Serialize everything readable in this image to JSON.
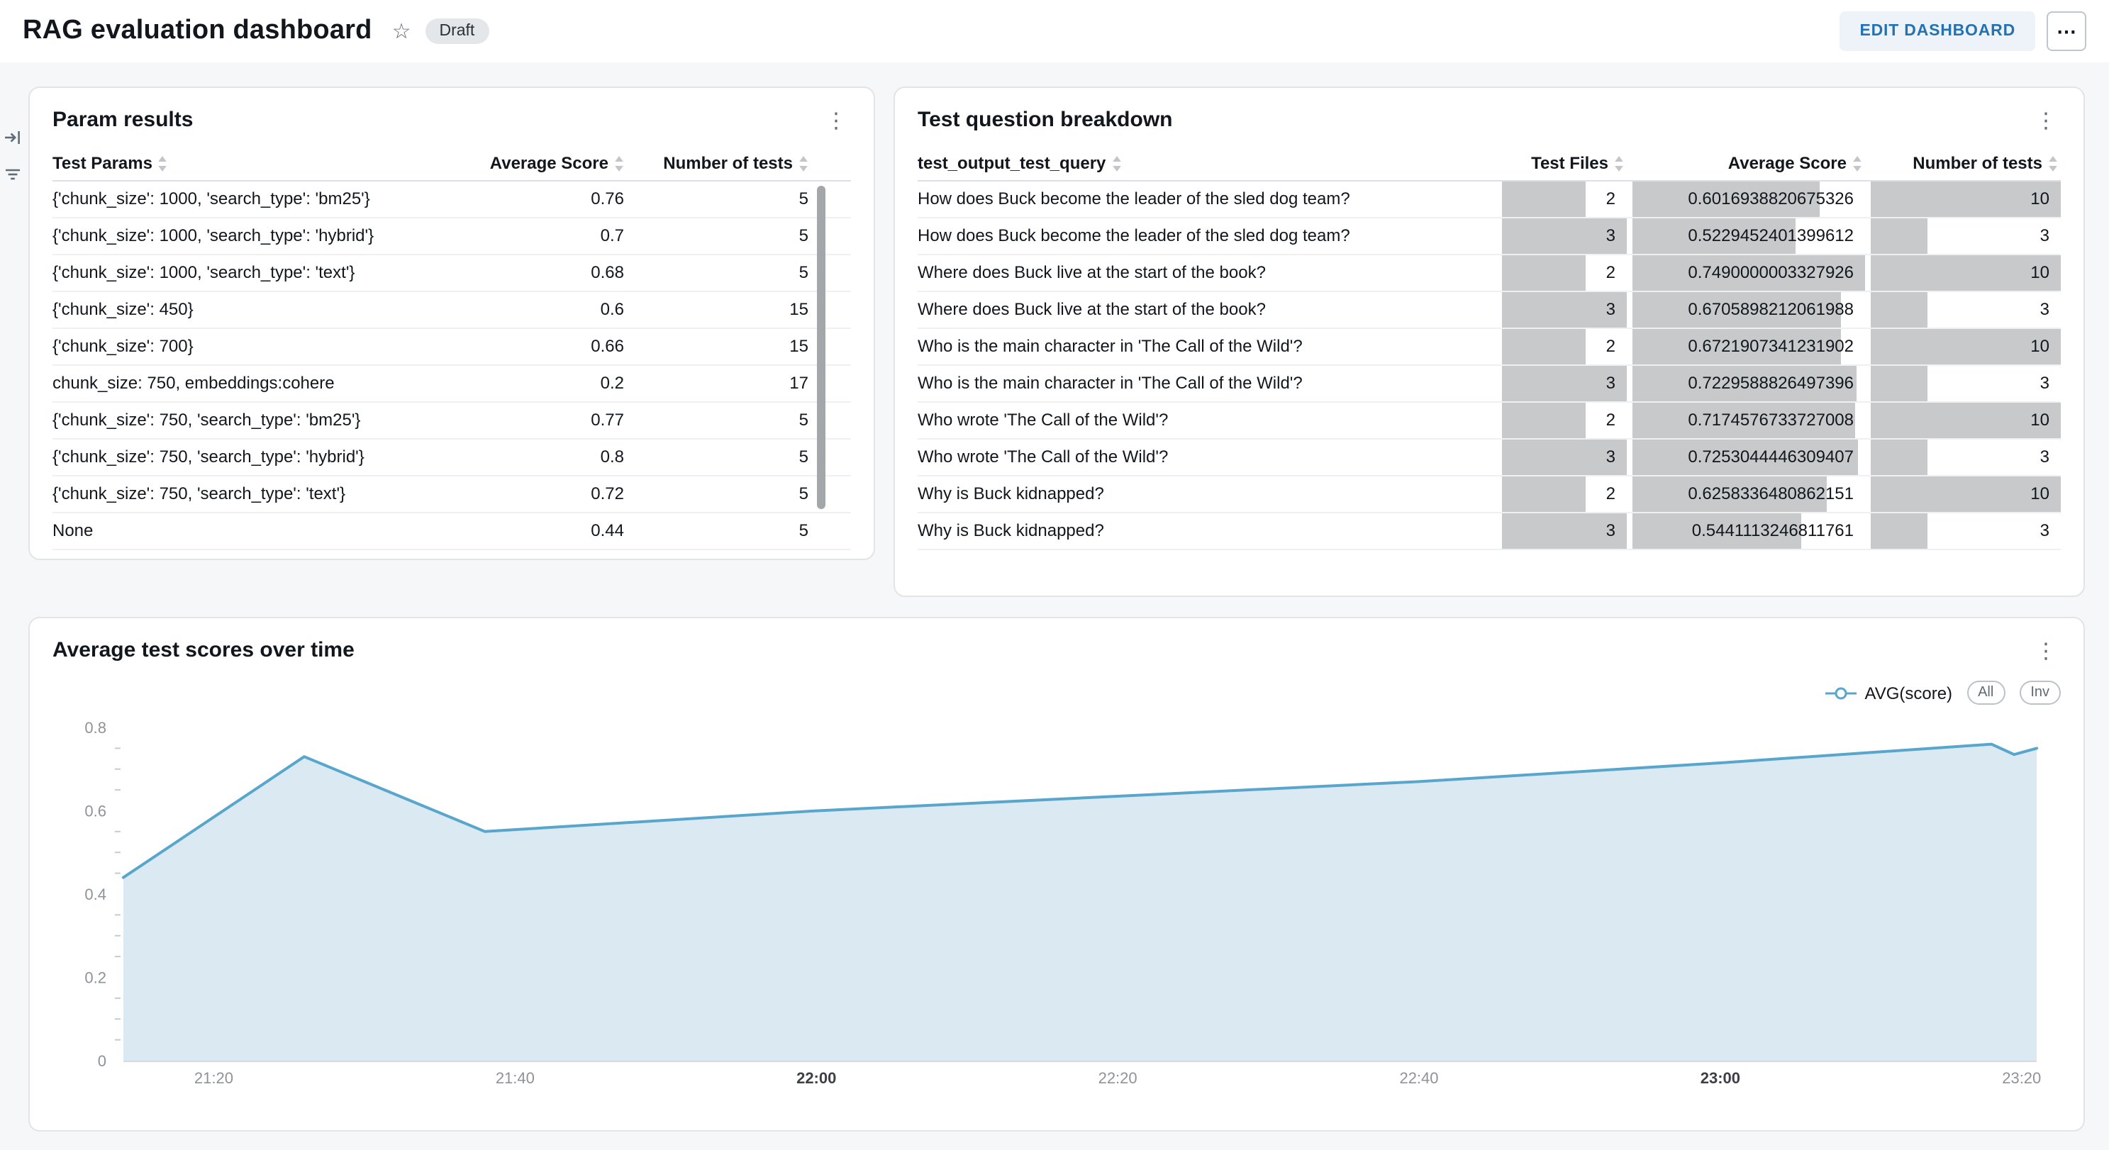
{
  "header": {
    "title": "RAG evaluation dashboard",
    "status_badge": "Draft",
    "edit_button": "EDIT DASHBOARD",
    "more_icon": "⋯",
    "star_icon": "☆",
    "accent_color": "#2272B4"
  },
  "panels": {
    "param_results": {
      "title": "Param results",
      "columns": [
        "Test Params",
        "Average Score",
        "Number of tests"
      ],
      "rows": [
        {
          "params": "{'chunk_size': 1000, 'search_type': 'bm25'}",
          "avg_score": "0.76",
          "num_tests": "5"
        },
        {
          "params": "{'chunk_size': 1000, 'search_type': 'hybrid'}",
          "avg_score": "0.7",
          "num_tests": "5"
        },
        {
          "params": "{'chunk_size': 1000, 'search_type': 'text'}",
          "avg_score": "0.68",
          "num_tests": "5"
        },
        {
          "params": "{'chunk_size': 450}",
          "avg_score": "0.6",
          "num_tests": "15"
        },
        {
          "params": "{'chunk_size': 700}",
          "avg_score": "0.66",
          "num_tests": "15"
        },
        {
          "params": "chunk_size: 750, embeddings:cohere",
          "avg_score": "0.2",
          "num_tests": "17"
        },
        {
          "params": "{'chunk_size': 750, 'search_type': 'bm25'}",
          "avg_score": "0.77",
          "num_tests": "5"
        },
        {
          "params": "{'chunk_size': 750, 'search_type': 'hybrid'}",
          "avg_score": "0.8",
          "num_tests": "5"
        },
        {
          "params": "{'chunk_size': 750, 'search_type': 'text'}",
          "avg_score": "0.72",
          "num_tests": "5"
        },
        {
          "params": "None",
          "avg_score": "0.44",
          "num_tests": "5"
        }
      ]
    },
    "question_breakdown": {
      "title": "Test question breakdown",
      "columns": [
        "test_output_test_query",
        "Test Files",
        "Average Score",
        "Number of tests"
      ],
      "bar_color": "#C7C9CB",
      "rows": [
        {
          "query": "How does Buck become the leader of the sled dog team?",
          "test_files": "2",
          "avg_score": "0.6016938820675326",
          "num_tests": "10"
        },
        {
          "query": "How does Buck become the leader of the sled dog team?",
          "test_files": "3",
          "avg_score": "0.5229452401399612",
          "num_tests": "3"
        },
        {
          "query": "Where does Buck live at the start of the book?",
          "test_files": "2",
          "avg_score": "0.7490000003327926",
          "num_tests": "10"
        },
        {
          "query": "Where does Buck live at the start of the book?",
          "test_files": "3",
          "avg_score": "0.6705898212061988",
          "num_tests": "3"
        },
        {
          "query": "Who is the main character in 'The Call of the Wild'?",
          "test_files": "2",
          "avg_score": "0.6721907341231902",
          "num_tests": "10"
        },
        {
          "query": "Who is the main character in 'The Call of the Wild'?",
          "test_files": "3",
          "avg_score": "0.7229588826497396",
          "num_tests": "3"
        },
        {
          "query": "Who wrote 'The Call of the Wild'?",
          "test_files": "2",
          "avg_score": "0.7174576733727008",
          "num_tests": "10"
        },
        {
          "query": "Who wrote 'The Call of the Wild'?",
          "test_files": "3",
          "avg_score": "0.7253044446309407",
          "num_tests": "3"
        },
        {
          "query": "Why is Buck kidnapped?",
          "test_files": "2",
          "avg_score": "0.6258336480862151",
          "num_tests": "10"
        },
        {
          "query": "Why is Buck kidnapped?",
          "test_files": "3",
          "avg_score": "0.5441113246811761",
          "num_tests": "3"
        }
      ]
    },
    "scores_chart": {
      "title": "Average test scores over time"
    }
  },
  "chart_data": {
    "type": "area",
    "title": "Average test scores over time",
    "x_unit": "minutes after 21:00",
    "x_range": [
      14,
      141
    ],
    "ylim": [
      0,
      0.8
    ],
    "y_ticks": [
      0,
      0.2,
      0.4,
      0.6,
      0.8
    ],
    "minor_step": 0.05,
    "x_ticks": [
      {
        "label": "21:20",
        "m": 20,
        "bold": false
      },
      {
        "label": "21:40",
        "m": 40,
        "bold": false
      },
      {
        "label": "22:00",
        "m": 60,
        "bold": true
      },
      {
        "label": "22:20",
        "m": 80,
        "bold": false
      },
      {
        "label": "22:40",
        "m": 100,
        "bold": false
      },
      {
        "label": "23:00",
        "m": 120,
        "bold": true
      },
      {
        "label": "23:20",
        "m": 140,
        "bold": false
      }
    ],
    "series": [
      {
        "name": "AVG(score)",
        "points": [
          {
            "m": 14,
            "v": 0.44
          },
          {
            "m": 26,
            "v": 0.73
          },
          {
            "m": 38,
            "v": 0.55
          },
          {
            "m": 60,
            "v": 0.6
          },
          {
            "m": 80,
            "v": 0.635
          },
          {
            "m": 100,
            "v": 0.67
          },
          {
            "m": 120,
            "v": 0.715
          },
          {
            "m": 138,
            "v": 0.76
          },
          {
            "m": 139.5,
            "v": 0.735
          },
          {
            "m": 141,
            "v": 0.75
          }
        ]
      }
    ],
    "line_color": "#58A6CC",
    "fill_color": "#DAE9F2",
    "legend": {
      "label": "AVG(score)",
      "all_button": "All",
      "inv_button": "Inv"
    }
  }
}
